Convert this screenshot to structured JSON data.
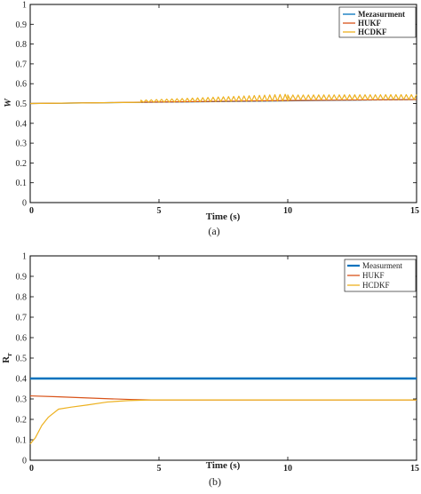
{
  "charts": [
    {
      "id": "a",
      "caption": "(a)",
      "xlabel": "Time (s)",
      "ylabel": "W",
      "xlim": [
        0,
        15
      ],
      "ylim": [
        0,
        1
      ],
      "xticks": [
        0,
        5,
        10,
        15
      ],
      "yticks": [
        0,
        0.1,
        0.2,
        0.3,
        0.4,
        0.5,
        0.6,
        0.7,
        0.8,
        0.9,
        1
      ],
      "legend_position": "top-right",
      "legend": [
        "Mezasurment",
        "HUKF",
        "HCDKF"
      ],
      "colors": [
        "#0072bd",
        "#d95319",
        "#edb120"
      ]
    },
    {
      "id": "b",
      "caption": "(b)",
      "xlabel": "Time (s)",
      "ylabel": "R",
      "ylabel_sub": "r",
      "xlim": [
        0,
        15
      ],
      "ylim": [
        0,
        1
      ],
      "xticks": [
        0,
        5,
        10,
        15
      ],
      "yticks": [
        0,
        0.1,
        0.2,
        0.3,
        0.4,
        0.5,
        0.6,
        0.7,
        0.8,
        0.9,
        1
      ],
      "legend_position": "top-right",
      "legend": [
        "Measurment",
        "HUKF",
        "HCDKF"
      ],
      "colors": [
        "#0072bd",
        "#d95319",
        "#edb120"
      ]
    }
  ],
  "chart_data": [
    {
      "type": "line",
      "xlabel": "Time (s)",
      "ylabel": "W",
      "xlim": [
        0,
        15
      ],
      "ylim": [
        0,
        1
      ],
      "grid": false,
      "legend": "top-right",
      "series": [
        {
          "name": "Mezasurment",
          "color": "#0072bd",
          "x": [
            0,
            15
          ],
          "y": [
            0.5,
            0.52
          ]
        },
        {
          "name": "HUKF",
          "color": "#d95319",
          "x": [
            0,
            2,
            4,
            6,
            8,
            10,
            12,
            15
          ],
          "y": [
            0.5,
            0.503,
            0.506,
            0.509,
            0.512,
            0.515,
            0.517,
            0.52
          ]
        },
        {
          "name": "HCDKF",
          "color": "#edb120",
          "x": [
            0,
            4.3
          ],
          "y": [
            0.5,
            0.506
          ],
          "oscillation": [
            {
              "x_start": 4.3,
              "x_end": 10.0,
              "period": 0.2,
              "base": 0.507,
              "amp_start": 0.01,
              "amp_end": 0.03,
              "drift": 0.01
            },
            {
              "x_start": 10.0,
              "x_end": 15.0,
              "period": 0.2,
              "base": 0.521,
              "amp_start": 0.022,
              "amp_end": 0.022,
              "drift": 0.002
            }
          ]
        }
      ]
    },
    {
      "type": "line",
      "xlabel": "Time (s)",
      "ylabel": "Rr",
      "xlim": [
        0,
        15
      ],
      "ylim": [
        0,
        1
      ],
      "grid": false,
      "legend": "top-right",
      "series": [
        {
          "name": "Measurment",
          "color": "#0072bd",
          "x": [
            0,
            15
          ],
          "y": [
            0.4,
            0.4
          ]
        },
        {
          "name": "HUKF",
          "color": "#d95319",
          "x": [
            0,
            1,
            2,
            3,
            4,
            4.7,
            6,
            10,
            15
          ],
          "y": [
            0.315,
            0.311,
            0.306,
            0.301,
            0.297,
            0.295,
            0.295,
            0.295,
            0.295
          ]
        },
        {
          "name": "HCDKF",
          "color": "#edb120",
          "x": [
            0,
            0.2,
            0.45,
            0.7,
            1.1,
            1.6,
            2.2,
            3.0,
            3.8,
            4.7,
            6,
            10,
            15
          ],
          "y": [
            0.08,
            0.11,
            0.17,
            0.21,
            0.25,
            0.26,
            0.27,
            0.285,
            0.292,
            0.295,
            0.295,
            0.295,
            0.295
          ]
        }
      ]
    }
  ]
}
